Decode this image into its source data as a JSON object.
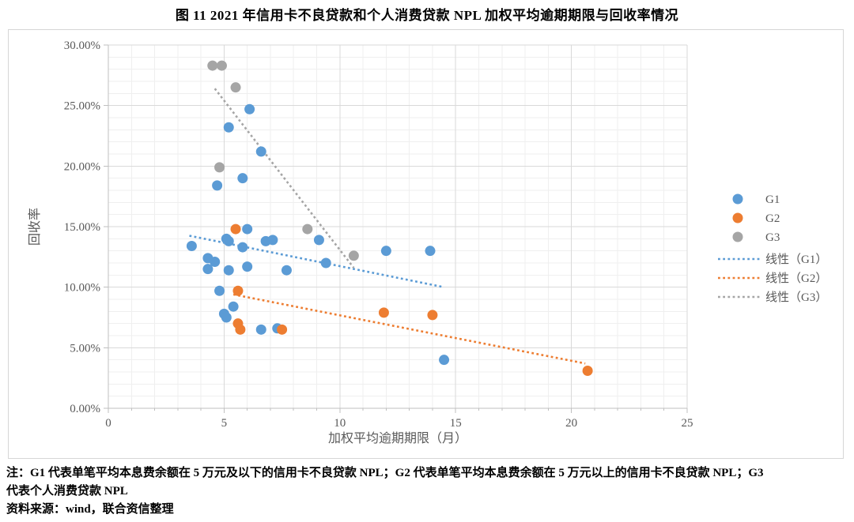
{
  "title": "图 11  2021 年信用卡不良贷款和个人消费贷款 NPL 加权平均逾期期限与回收率情况",
  "notes": {
    "line1": "注：G1 代表单笔平均本息费余额在 5 万元及以下的信用卡不良贷款 NPL；G2 代表单笔平均本息费余额在 5 万元以上的信用卡不良贷款 NPL；G3",
    "line2": "代表个人消费贷款 NPL",
    "source": "资料来源：wind，联合资信整理"
  },
  "chart_data": {
    "type": "scatter",
    "title": "图 11  2021 年信用卡不良贷款和个人消费贷款 NPL 加权平均逾期期限与回收率情况",
    "xlabel": "加权平均逾期期限（月）",
    "ylabel": "回收率",
    "xlim": [
      0,
      25
    ],
    "ylim_percent": [
      0,
      30
    ],
    "x_ticks": [
      0,
      5,
      10,
      15,
      20,
      25
    ],
    "y_tick_labels": [
      "0.00%",
      "5.00%",
      "10.00%",
      "15.00%",
      "20.00%",
      "25.00%",
      "30.00%"
    ],
    "grid": "major-and-minor",
    "legend_position": "right",
    "colors": {
      "g1": "#5B9BD5",
      "g2": "#ED7D31",
      "g3": "#A5A5A5",
      "axis_text": "#595959",
      "grid_major": "#D9D9D9",
      "grid_minor": "#EFEFEF",
      "axis_line": "#BFBFBF"
    },
    "series": [
      {
        "name": "G1",
        "color": "#5B9BD5",
        "points": [
          [
            3.6,
            13.4
          ],
          [
            4.3,
            12.4
          ],
          [
            4.3,
            11.5
          ],
          [
            4.6,
            12.1
          ],
          [
            4.7,
            18.4
          ],
          [
            4.8,
            9.7
          ],
          [
            5.0,
            7.8
          ],
          [
            5.1,
            7.5
          ],
          [
            5.1,
            14.0
          ],
          [
            5.2,
            23.2
          ],
          [
            5.2,
            11.4
          ],
          [
            5.2,
            13.8
          ],
          [
            5.4,
            8.4
          ],
          [
            5.8,
            13.3
          ],
          [
            5.8,
            19.0
          ],
          [
            6.0,
            11.7
          ],
          [
            6.0,
            14.8
          ],
          [
            6.1,
            24.7
          ],
          [
            6.6,
            21.2
          ],
          [
            6.6,
            6.5
          ],
          [
            6.8,
            13.8
          ],
          [
            7.1,
            13.9
          ],
          [
            7.3,
            6.6
          ],
          [
            7.7,
            11.4
          ],
          [
            9.1,
            13.9
          ],
          [
            9.4,
            12.0
          ],
          [
            12.0,
            13.0
          ],
          [
            13.9,
            13.0
          ],
          [
            14.5,
            4.0
          ]
        ]
      },
      {
        "name": "G2",
        "color": "#ED7D31",
        "points": [
          [
            5.5,
            14.8
          ],
          [
            5.6,
            9.7
          ],
          [
            5.6,
            7.0
          ],
          [
            5.7,
            6.5
          ],
          [
            7.5,
            6.5
          ],
          [
            11.9,
            7.9
          ],
          [
            14.0,
            7.7
          ],
          [
            20.7,
            3.1
          ]
        ]
      },
      {
        "name": "G3",
        "color": "#A5A5A5",
        "points": [
          [
            4.5,
            28.3
          ],
          [
            4.9,
            28.3
          ],
          [
            5.5,
            26.5
          ],
          [
            4.8,
            19.9
          ],
          [
            8.6,
            14.8
          ],
          [
            10.6,
            12.6
          ]
        ]
      }
    ],
    "trendlines": [
      {
        "name": "线性（G1）",
        "color": "#5B9BD5",
        "from": [
          3.5,
          14.25
        ],
        "to": [
          14.5,
          10.0
        ]
      },
      {
        "name": "线性（G2）",
        "color": "#ED7D31",
        "from": [
          5.4,
          9.4
        ],
        "to": [
          20.6,
          3.7
        ]
      },
      {
        "name": "线性（G3）",
        "color": "#A5A5A5",
        "from": [
          4.6,
          26.4
        ],
        "to": [
          10.6,
          11.6
        ]
      }
    ]
  }
}
